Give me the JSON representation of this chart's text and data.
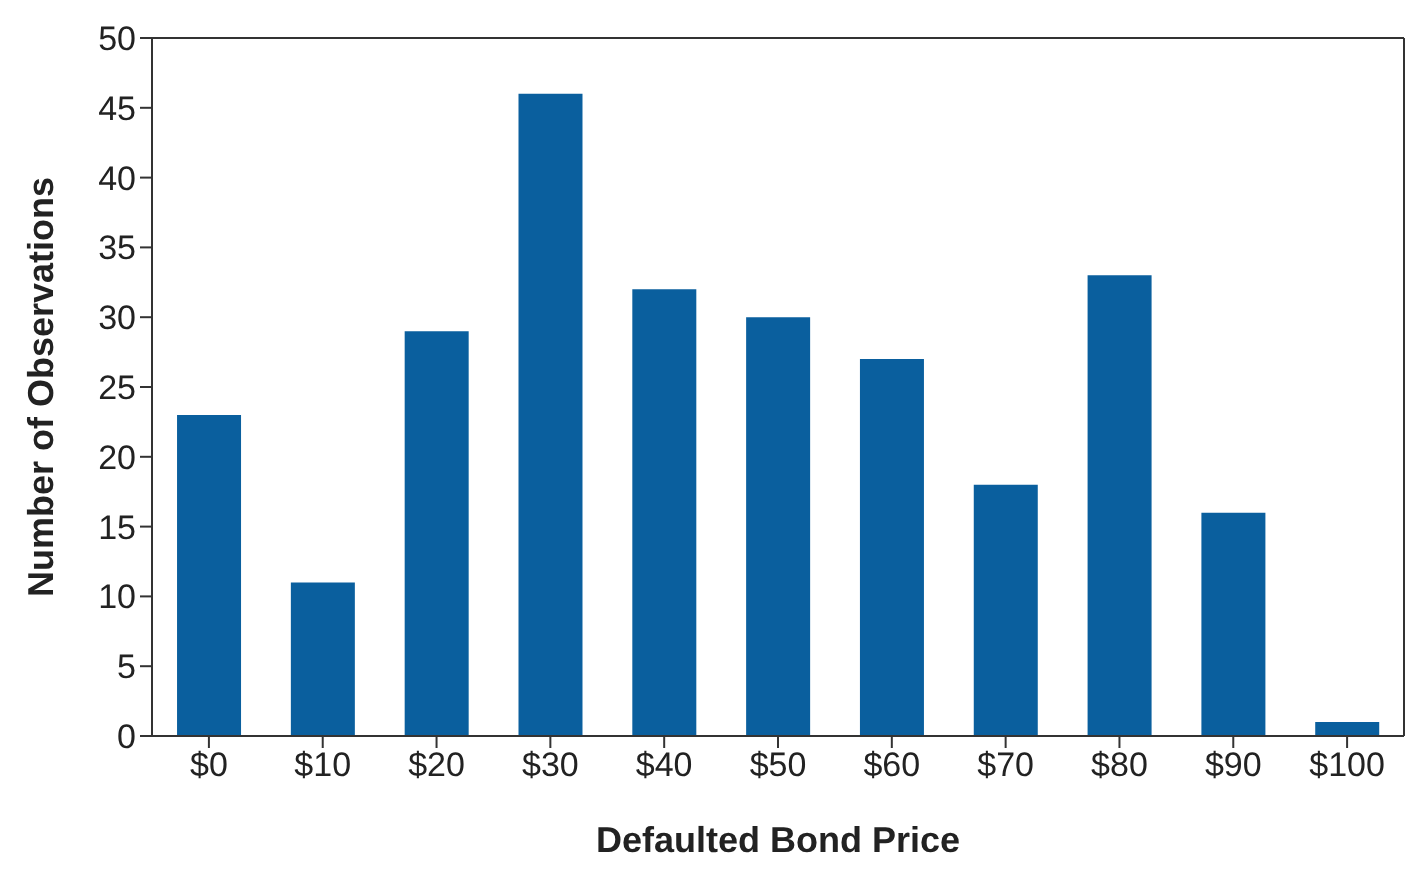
{
  "chart_data": {
    "type": "bar",
    "xlabel": "Defaulted Bond Price",
    "ylabel": "Number of Observations",
    "categories": [
      "$0",
      "$10",
      "$20",
      "$30",
      "$40",
      "$50",
      "$60",
      "$70",
      "$80",
      "$90",
      "$100"
    ],
    "values": [
      23,
      11,
      29,
      46,
      32,
      30,
      27,
      18,
      33,
      16,
      1
    ],
    "color": "#0a5f9e",
    "ylim": [
      0,
      50
    ],
    "yticks": [
      0,
      5,
      10,
      15,
      20,
      25,
      30,
      35,
      40,
      45,
      50
    ],
    "grid": false,
    "legend": false
  }
}
